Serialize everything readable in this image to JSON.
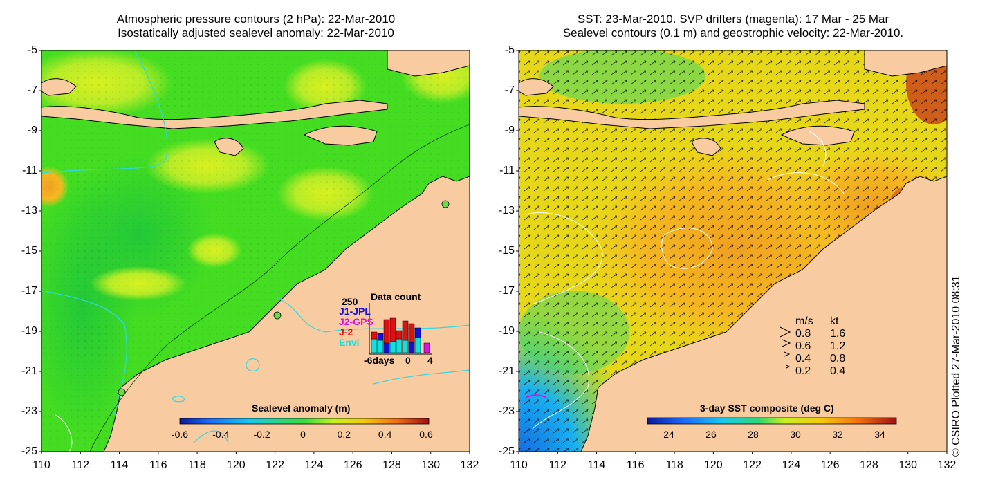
{
  "left_panel": {
    "title_line1": "Atmospheric pressure contours (2 hPa): 22-Mar-2010",
    "title_line2": "Isostatically adjusted sealevel anomaly: 22-Mar-2010",
    "colorbar": {
      "title": "Sealevel anomaly (m)",
      "ticks": [
        "-0.6",
        "-0.4",
        "-0.2",
        "0",
        "0.2",
        "0.4",
        "0.6"
      ],
      "stops": [
        "#0a1a9c",
        "#1b6cff",
        "#18c8f0",
        "#30d870",
        "#3cdc3c",
        "#c8f020",
        "#f4c810",
        "#f07010",
        "#a01010"
      ]
    },
    "inset": {
      "title": "Data count",
      "ymax_label": "250",
      "legend": [
        {
          "label": "J1-JPL",
          "color": "#1010e0"
        },
        {
          "label": "J2-GPS",
          "color": "#e010e0"
        },
        {
          "label": "J-2",
          "color": "#e01010"
        },
        {
          "label": "Envi",
          "color": "#10e0e0"
        }
      ],
      "xlabel_left": "-6days",
      "xlabel_mid": "0",
      "xlabel_right": "4"
    }
  },
  "right_panel": {
    "title_line1": "SST: 23-Mar-2010. SVP drifters (magenta): 17 Mar - 25 Mar",
    "title_line2": "Sealevel contours (0.1 m) and geostrophic velocity: 22-Mar-2010.",
    "colorbar": {
      "title": "3-day SST composite (deg C)",
      "ticks": [
        "24",
        "26",
        "28",
        "30",
        "32",
        "34"
      ],
      "stops": [
        "#0a1a9c",
        "#1b6cff",
        "#18c8f0",
        "#30d870",
        "#c8f020",
        "#f4c810",
        "#f07010",
        "#a01010"
      ]
    },
    "velocity_key": {
      "header_ms": "m/s",
      "header_kt": "kt",
      "rows": [
        {
          "ms": "0.8",
          "kt": "1.6"
        },
        {
          "ms": "0.6",
          "kt": "1.2"
        },
        {
          "ms": "0.4",
          "kt": "0.8"
        },
        {
          "ms": "0.2",
          "kt": "0.4"
        }
      ]
    }
  },
  "axes": {
    "x_ticks": [
      "110",
      "112",
      "114",
      "116",
      "118",
      "120",
      "122",
      "124",
      "126",
      "128",
      "130",
      "132"
    ],
    "y_ticks": [
      "-5",
      "-7",
      "-9",
      "-11",
      "-13",
      "-15",
      "-17",
      "-19",
      "-21",
      "-23",
      "-25"
    ]
  },
  "credit": "© CSIRO Plotted 27-Mar-2010 08:31",
  "colors": {
    "land": "#f9cba0",
    "sea_green": "#44dd22",
    "sea_yellow": "#c8f020",
    "sst_orange": "#f0a010",
    "contour_cyan": "#30d8e0"
  }
}
